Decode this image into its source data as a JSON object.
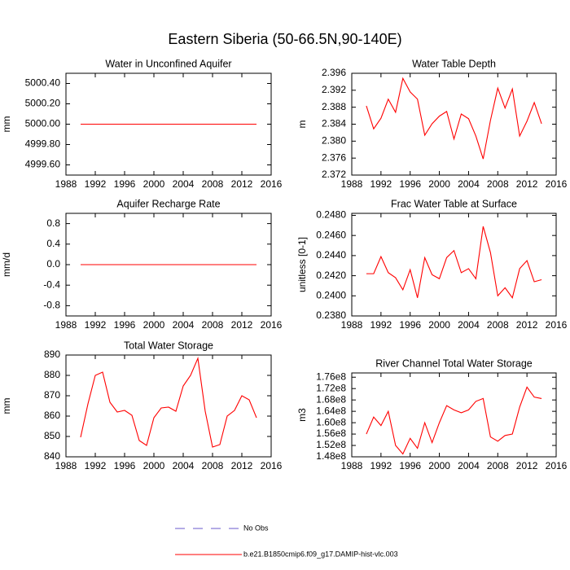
{
  "title": "Eastern Siberia (50-66.5N,90-140E)",
  "legend": [
    {
      "name": "No Obs",
      "color": "#6a5acd",
      "dash": true
    },
    {
      "name": "b.e21.B1850cmip6.f09_g17.DAMIP-hist-vlc.003",
      "color": "#ff0000",
      "dash": false
    }
  ],
  "chart_data": [
    {
      "type": "line",
      "title": "Water in Unconfined Aquifer",
      "y_label": "mm",
      "x": [
        1990,
        1991,
        1992,
        1993,
        1994,
        1995,
        1996,
        1997,
        1998,
        1999,
        2000,
        2001,
        2002,
        2003,
        2004,
        2005,
        2006,
        2007,
        2008,
        2009,
        2010,
        2011,
        2012,
        2013,
        2014
      ],
      "series": [
        {
          "color": "#ff0000",
          "values": [
            5000,
            5000,
            5000,
            5000,
            5000,
            5000,
            5000,
            5000,
            5000,
            5000,
            5000,
            5000,
            5000,
            5000,
            5000,
            5000,
            5000,
            5000,
            5000,
            5000,
            5000,
            5000,
            5000,
            5000,
            5000
          ]
        }
      ],
      "xlim": [
        1988,
        2016
      ],
      "xticks": [
        1988,
        1992,
        1996,
        2000,
        2004,
        2008,
        2012,
        2016
      ],
      "ylim": [
        4999.5,
        5000.5
      ],
      "yticks": [
        {
          "value": 4999.6,
          "label": "4999.60"
        },
        {
          "value": 4999.8,
          "label": "4999.80"
        },
        {
          "value": 5000,
          "label": "5000.00"
        },
        {
          "value": 5000.2,
          "label": "5000.20"
        },
        {
          "value": 5000.4,
          "label": "5000.40"
        }
      ]
    },
    {
      "type": "line",
      "title": "Water Table Depth",
      "y_label": "m",
      "x": [
        1990,
        1991,
        1992,
        1993,
        1994,
        1995,
        1996,
        1997,
        1998,
        1999,
        2000,
        2001,
        2002,
        2003,
        2004,
        2005,
        2006,
        2007,
        2008,
        2009,
        2010,
        2011,
        2012,
        2013,
        2014
      ],
      "series": [
        {
          "color": "#ff0000",
          "values": [
            2.3883,
            2.3829,
            2.3854,
            2.3899,
            2.3868,
            2.3948,
            2.3916,
            2.3899,
            2.3814,
            2.3841,
            2.3859,
            2.387,
            2.3805,
            2.3864,
            2.3853,
            2.3812,
            2.3758,
            2.3849,
            2.3925,
            2.3878,
            2.3923,
            2.3812,
            2.3847,
            2.3891,
            2.3841
          ]
        }
      ],
      "xlim": [
        1988,
        2016
      ],
      "xticks": [
        1988,
        1992,
        1996,
        2000,
        2004,
        2008,
        2012,
        2016
      ],
      "ylim": [
        2.372,
        2.396
      ],
      "yticks": [
        2.372,
        2.376,
        {
          "value": 2.38,
          "label": "2.380"
        },
        2.384,
        2.388,
        2.392,
        2.396
      ]
    },
    {
      "type": "line",
      "title": "Aquifer Recharge Rate",
      "y_label": "mm/d",
      "x": [
        1990,
        1991,
        1992,
        1993,
        1994,
        1995,
        1996,
        1997,
        1998,
        1999,
        2000,
        2001,
        2002,
        2003,
        2004,
        2005,
        2006,
        2007,
        2008,
        2009,
        2010,
        2011,
        2012,
        2013,
        2014
      ],
      "series": [
        {
          "color": "#ff0000",
          "values": [
            0,
            0,
            0,
            0,
            0,
            0,
            0,
            0,
            0,
            0,
            0,
            0,
            0,
            0,
            0,
            0,
            0,
            0,
            0,
            0,
            0,
            0,
            0,
            0,
            0
          ]
        }
      ],
      "xlim": [
        1988,
        2016
      ],
      "xticks": [
        1988,
        1992,
        1996,
        2000,
        2004,
        2008,
        2012,
        2016
      ],
      "ylim": [
        -1,
        1
      ],
      "yticks": [
        -0.8,
        -0.4,
        {
          "value": 0,
          "label": "0.0"
        },
        0.4,
        0.8
      ]
    },
    {
      "type": "line",
      "title": "Frac Water Table at Surface",
      "y_label": "unitless [0-1]",
      "x": [
        1990,
        1991,
        1992,
        1993,
        1994,
        1995,
        1996,
        1997,
        1998,
        1999,
        2000,
        2001,
        2002,
        2003,
        2004,
        2005,
        2006,
        2007,
        2008,
        2009,
        2010,
        2011,
        2012,
        2013,
        2014
      ],
      "series": [
        {
          "color": "#ff0000",
          "values": [
            0.2422,
            0.2422,
            0.2439,
            0.2423,
            0.2418,
            0.2406,
            0.2426,
            0.2398,
            0.2438,
            0.2421,
            0.2417,
            0.2438,
            0.2445,
            0.2423,
            0.2427,
            0.2417,
            0.2469,
            0.2443,
            0.24,
            0.2408,
            0.2398,
            0.2427,
            0.2435,
            0.2414,
            0.2416
          ]
        }
      ],
      "xlim": [
        1988,
        2016
      ],
      "xticks": [
        1988,
        1992,
        1996,
        2000,
        2004,
        2008,
        2012,
        2016
      ],
      "ylim": [
        0.238,
        0.2482
      ],
      "yticks": [
        {
          "value": 0.238,
          "label": "0.2380"
        },
        {
          "value": 0.24,
          "label": "0.2400"
        },
        {
          "value": 0.242,
          "label": "0.2420"
        },
        {
          "value": 0.244,
          "label": "0.2440"
        },
        {
          "value": 0.246,
          "label": "0.2460"
        },
        {
          "value": 0.248,
          "label": "0.2480"
        }
      ]
    },
    {
      "type": "line",
      "title": "Total Water Storage",
      "y_label": "mm",
      "x": [
        1990,
        1991,
        1992,
        1993,
        1994,
        1995,
        1996,
        1997,
        1998,
        1999,
        2000,
        2001,
        2002,
        2003,
        2004,
        2005,
        2006,
        2007,
        2008,
        2009,
        2010,
        2011,
        2012,
        2013,
        2014
      ],
      "series": [
        {
          "color": "#ff0000",
          "values": [
            849.6,
            866,
            880,
            881.6,
            866.8,
            862,
            862.8,
            860.4,
            848,
            845.6,
            859.2,
            864,
            864.4,
            862.4,
            874.8,
            880,
            888.4,
            862.4,
            844.8,
            846,
            860,
            862.8,
            870,
            868,
            859.2
          ]
        }
      ],
      "xlim": [
        1988,
        2016
      ],
      "xticks": [
        1988,
        1992,
        1996,
        2000,
        2004,
        2008,
        2012,
        2016
      ],
      "ylim": [
        840,
        890
      ],
      "yticks": [
        840,
        850,
        860,
        870,
        880,
        890
      ]
    },
    {
      "type": "line",
      "title": "River Channel Total Water Storage",
      "y_label": "m3",
      "x": [
        1990,
        1991,
        1992,
        1993,
        1994,
        1995,
        1996,
        1997,
        1998,
        1999,
        2000,
        2001,
        2002,
        2003,
        2004,
        2005,
        2006,
        2007,
        2008,
        2009,
        2010,
        2011,
        2012,
        2013,
        2014
      ],
      "series": [
        {
          "color": "#ff0000",
          "values": [
            156000000,
            162000000,
            159000000,
            164000000,
            152000000,
            149000000,
            154500000,
            151000000,
            160000000,
            153000000,
            160000000,
            166000000,
            164500000,
            163500000,
            164500000,
            167500000,
            168500000,
            155000000,
            153500000,
            155500000,
            156000000,
            165500000,
            172500000,
            169000000,
            168500000
          ]
        }
      ],
      "xlim": [
        1988,
        2016
      ],
      "xticks": [
        1988,
        1992,
        1996,
        2000,
        2004,
        2008,
        2012,
        2016
      ],
      "ylim": [
        148000000,
        177500000
      ],
      "yticks": [
        {
          "value": 148000000,
          "label": "1.48e8"
        },
        {
          "value": 152000000,
          "label": "1.52e8"
        },
        {
          "value": 156000000,
          "label": "1.56e8"
        },
        {
          "value": 160000000,
          "label": "1.60e8"
        },
        {
          "value": 164000000,
          "label": "1.64e8"
        },
        {
          "value": 168000000,
          "label": "1.68e8"
        },
        {
          "value": 172000000,
          "label": "1.72e8"
        },
        {
          "value": 176000000,
          "label": "1.76e8"
        }
      ]
    }
  ]
}
